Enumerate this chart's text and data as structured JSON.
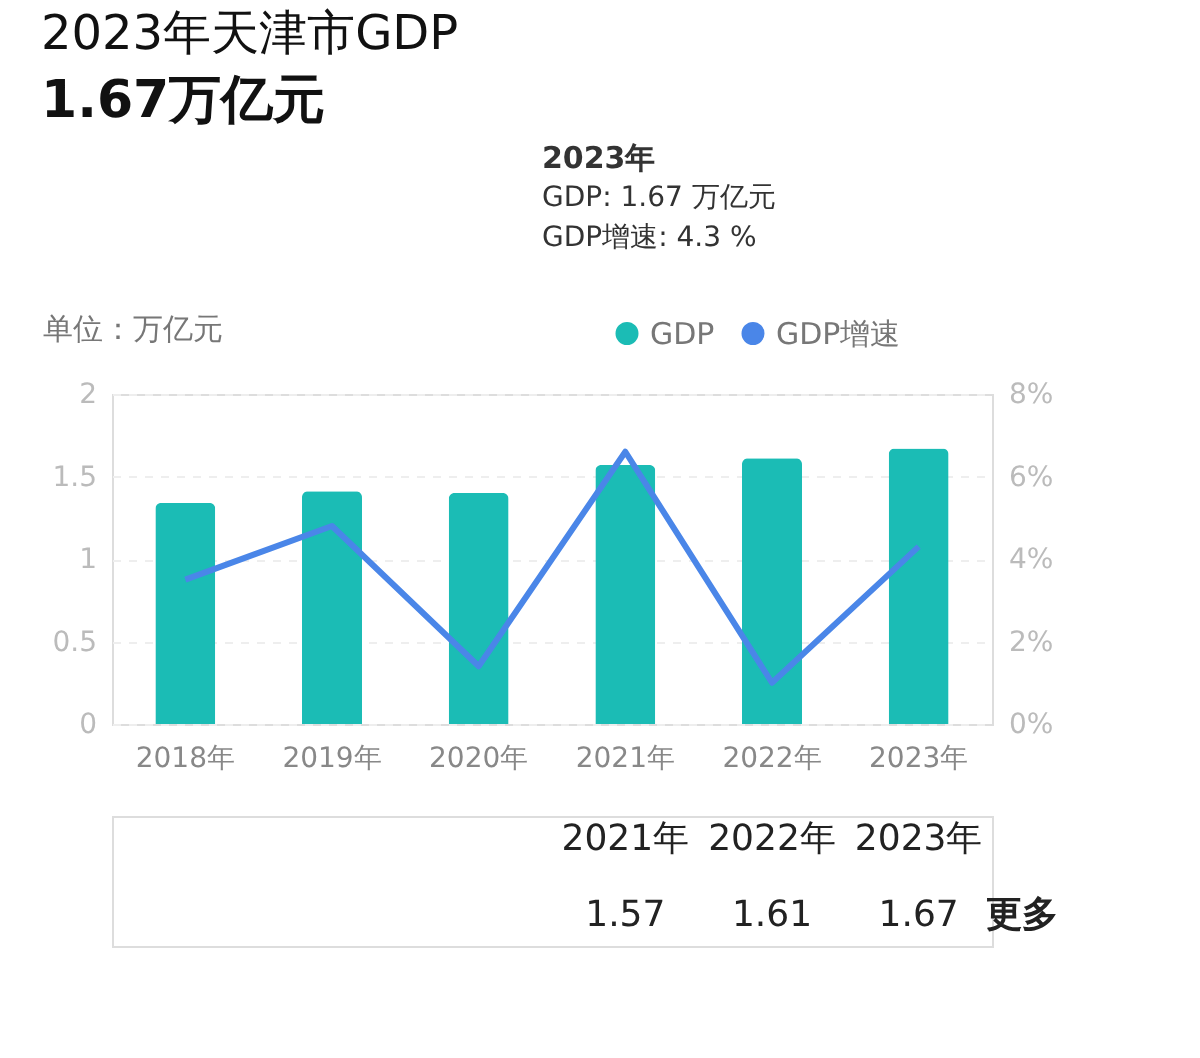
{
  "chart_data": {
    "type": "bar",
    "title": "2023年天津市GDP",
    "subtitle": "1.67万亿元",
    "ylabel": "单位：万亿元",
    "categories": [
      "2018年",
      "2019年",
      "2020年",
      "2021年",
      "2022年",
      "2023年"
    ],
    "series": [
      {
        "name": "GDP",
        "color": "#1bbcb5",
        "values": [
          1.34,
          1.41,
          1.4,
          1.57,
          1.61,
          1.67
        ],
        "value_labels": [
          null,
          null,
          null,
          "1.57",
          "1.61",
          "1.67"
        ]
      },
      {
        "name": "GDP增速",
        "color": "#4a86e8",
        "type": "line",
        "axis": "y2",
        "values": [
          3.5,
          4.8,
          1.4,
          6.6,
          1.0,
          4.3
        ]
      }
    ],
    "ylim": [
      0,
      2
    ],
    "yticks": [
      {
        "value": 0,
        "label": "0"
      },
      0.5,
      {
        "value": 1,
        "label": "1"
      },
      1.5,
      {
        "value": 2,
        "label": "2"
      }
    ],
    "y2lim": [
      0,
      8
    ],
    "y2ticks": [
      {
        "value": 0,
        "label": "0%"
      },
      {
        "value": 2,
        "label": "2%"
      },
      {
        "value": 4,
        "label": "4%"
      },
      {
        "value": 6,
        "label": "6%"
      },
      {
        "value": 8,
        "label": "8%"
      }
    ],
    "grid": "y",
    "legend": "top right",
    "annotations": [
      "2023年",
      "GDP: 1.67 万亿元",
      "GDP增速: 4.3 %",
      "更多"
    ]
  }
}
